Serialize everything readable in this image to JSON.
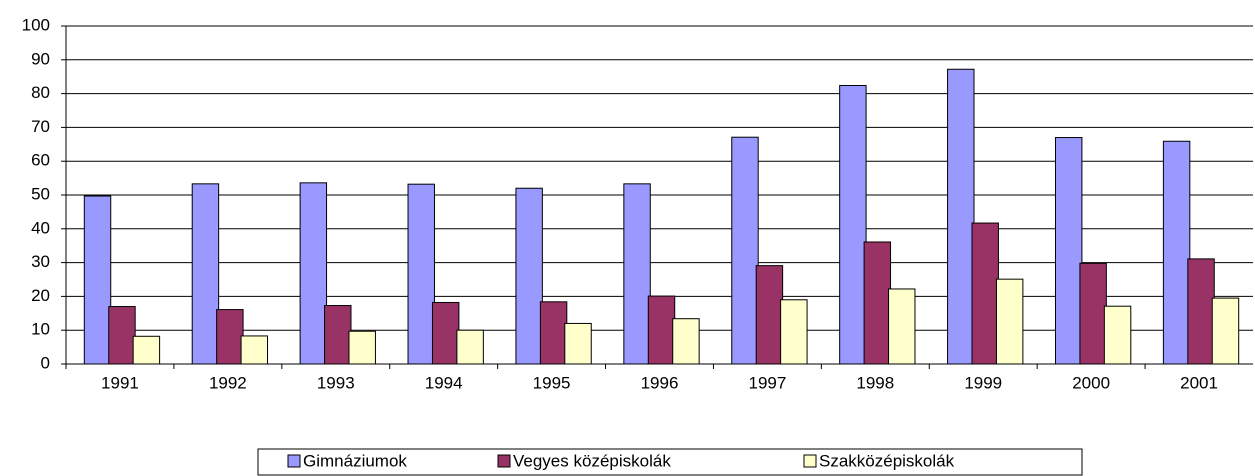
{
  "chart_data": {
    "type": "bar",
    "categories": [
      "1991",
      "1992",
      "1993",
      "1994",
      "1995",
      "1996",
      "1997",
      "1998",
      "1999",
      "2000",
      "2001"
    ],
    "series": [
      {
        "name": "Gimnáziumok",
        "color": "#9999ff",
        "values": [
          49.7,
          53.3,
          53.6,
          53.2,
          52.0,
          53.3,
          67.1,
          82.4,
          87.2,
          67.0,
          65.9
        ]
      },
      {
        "name": "Vegyes középiskolák",
        "color": "#993366",
        "values": [
          17.0,
          16.1,
          17.3,
          18.2,
          18.4,
          20.1,
          29.1,
          36.1,
          41.7,
          29.8,
          31.1
        ]
      },
      {
        "name": "Szakközépiskolák",
        "color": "#ffffcc",
        "values": [
          8.2,
          8.3,
          9.7,
          10.0,
          12.0,
          13.4,
          19.0,
          22.2,
          25.1,
          17.1,
          19.5
        ]
      }
    ],
    "ylim": [
      0,
      100
    ],
    "yticks": [
      0,
      10,
      20,
      30,
      40,
      50,
      60,
      70,
      80,
      90,
      100
    ],
    "grid": true,
    "legend": "bottom"
  }
}
